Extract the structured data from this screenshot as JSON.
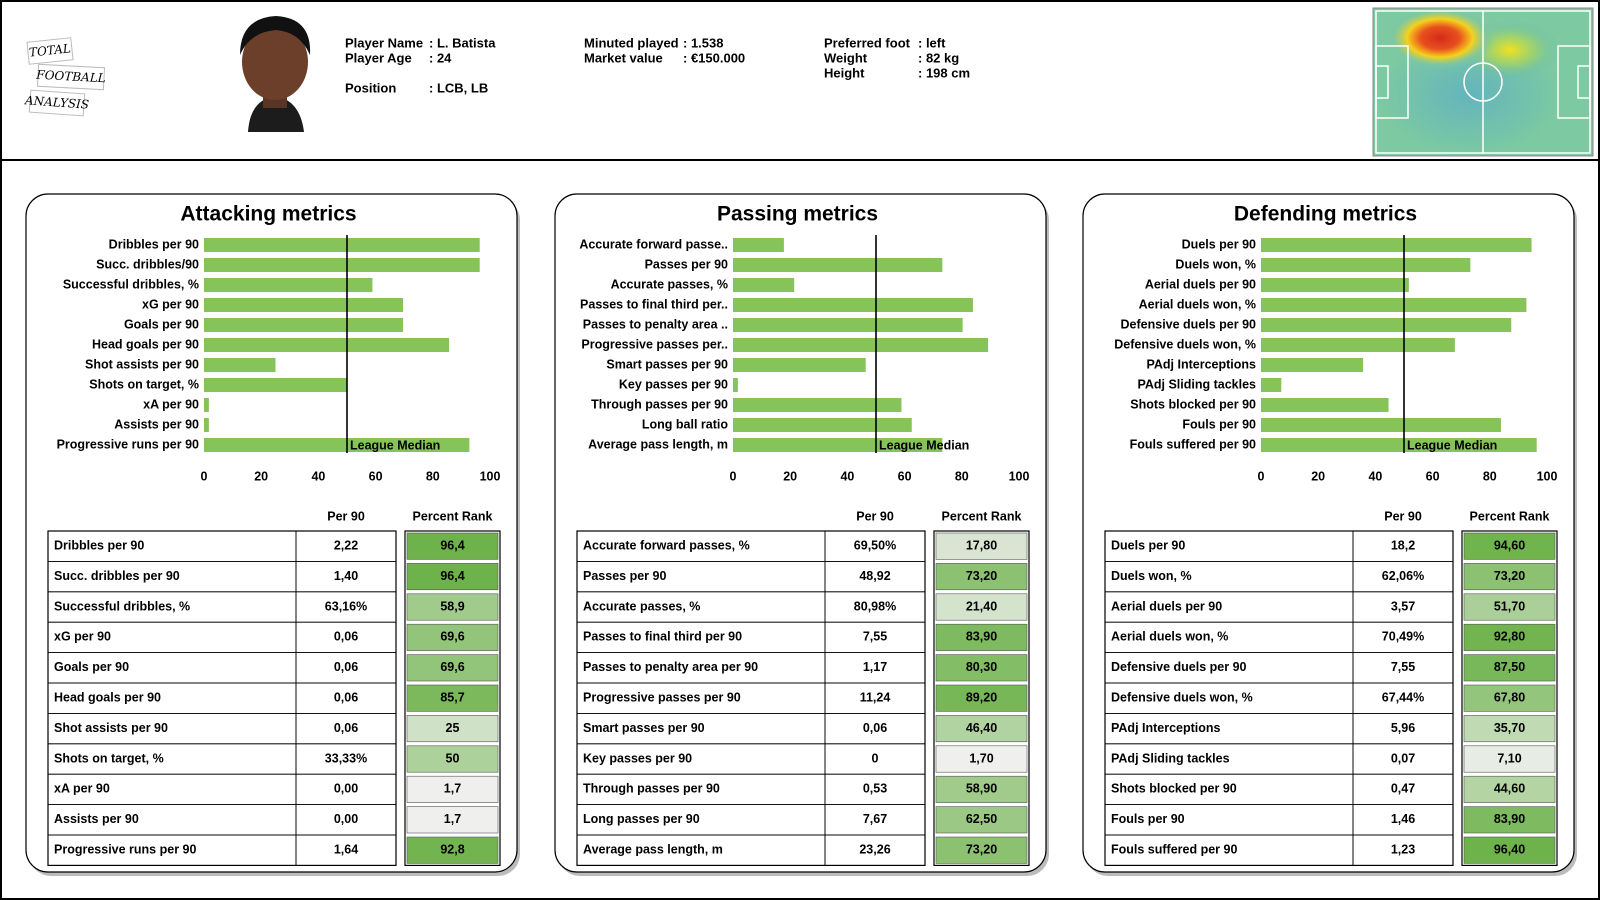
{
  "header": {
    "logo": [
      "TOTAL",
      "FOOTBALL",
      "ANALYSIS"
    ],
    "fields": [
      {
        "label": "Player Name",
        "value": ": L. Batista"
      },
      {
        "label": "Player Age",
        "value": ": 24"
      },
      {
        "label": "Position",
        "value": ": LCB, LB"
      },
      {
        "label": "Minuted played",
        "value": ": 1.538"
      },
      {
        "label": "Market value",
        "value": ": €150.000"
      },
      {
        "label": "Preferred foot",
        "value": ": left"
      },
      {
        "label": "Weight",
        "value": ": 82 kg"
      },
      {
        "label": "Height",
        "value": ": 198 cm"
      }
    ]
  },
  "chart_data": [
    {
      "type": "bar",
      "title": "Attacking metrics",
      "color": "#86c45a",
      "categories": [
        "Dribbles per 90",
        "Succ. dribbles/90",
        "Successful dribbles, %",
        "xG per 90",
        "Goals per 90",
        "Head goals per 90",
        "Shot assists per 90",
        "Shots on target, %",
        "xA per 90",
        "Assists per 90",
        "Progressive runs per 90"
      ],
      "values": [
        96.4,
        96.4,
        58.9,
        69.6,
        69.6,
        85.7,
        25,
        50,
        1.7,
        1.7,
        92.8
      ],
      "xlim": [
        0,
        100
      ],
      "xticks": [
        0,
        20,
        40,
        60,
        80,
        100
      ],
      "median": 50,
      "annotation": "League Median"
    },
    {
      "type": "bar",
      "title": "Passing metrics",
      "color": "#86c45a",
      "categories": [
        "Accurate forward passe..",
        "Passes per 90",
        "Accurate passes, %",
        "Passes to final third per..",
        "Passes to penalty area ..",
        "Progressive passes per..",
        "Smart passes per 90",
        "Key passes per 90",
        "Through passes per 90",
        "Long ball ratio",
        "Average pass length, m"
      ],
      "values": [
        17.8,
        73.2,
        21.4,
        83.9,
        80.3,
        89.2,
        46.4,
        1.7,
        58.9,
        62.5,
        73.2
      ],
      "xlim": [
        0,
        100
      ],
      "xticks": [
        0,
        20,
        40,
        60,
        80,
        100
      ],
      "median": 50,
      "annotation": "League Median"
    },
    {
      "type": "bar",
      "title": "Defending metrics",
      "color": "#86c45a",
      "categories": [
        "Duels per 90",
        "Duels won, %",
        "Aerial duels per 90",
        "Aerial duels won, %",
        "Defensive duels per 90",
        "Defensive duels won, %",
        "PAdj Interceptions",
        "PAdj Sliding tackles",
        "Shots blocked per 90",
        "Fouls per 90",
        "Fouls suffered per 90"
      ],
      "values": [
        94.6,
        73.2,
        51.7,
        92.8,
        87.5,
        67.8,
        35.7,
        7.1,
        44.6,
        83.9,
        96.4
      ],
      "xlim": [
        0,
        100
      ],
      "xticks": [
        0,
        20,
        40,
        60,
        80,
        100
      ],
      "median": 50,
      "annotation": "League Median"
    }
  ],
  "tables": [
    {
      "columns": [
        "Per 90",
        "Percent Rank"
      ],
      "rows": [
        [
          "Dribbles per 90",
          "2,22",
          "96,4"
        ],
        [
          "Succ. dribbles per 90",
          "1,40",
          "96,4"
        ],
        [
          "Successful dribbles, %",
          "63,16%",
          "58,9"
        ],
        [
          "xG per 90",
          "0,06",
          "69,6"
        ],
        [
          "Goals per 90",
          "0,06",
          "69,6"
        ],
        [
          "Head goals per 90",
          "0,06",
          "85,7"
        ],
        [
          "Shot assists per 90",
          "0,06",
          "25"
        ],
        [
          "Shots on target, %",
          "33,33%",
          "50"
        ],
        [
          "xA per 90",
          "0,00",
          "1,7"
        ],
        [
          "Assists per 90",
          "0,00",
          "1,7"
        ],
        [
          "Progressive runs per 90",
          "1,64",
          "92,8"
        ]
      ]
    },
    {
      "columns": [
        "Per 90",
        "Percent Rank"
      ],
      "rows": [
        [
          "Accurate forward passes, %",
          "69,50%",
          "17,80"
        ],
        [
          "Passes per 90",
          "48,92",
          "73,20"
        ],
        [
          "Accurate passes, %",
          "80,98%",
          "21,40"
        ],
        [
          "Passes to final third per 90",
          "7,55",
          "83,90"
        ],
        [
          "Passes to penalty area per 90",
          "1,17",
          "80,30"
        ],
        [
          "Progressive passes per 90",
          "11,24",
          "89,20"
        ],
        [
          "Smart passes per 90",
          "0,06",
          "46,40"
        ],
        [
          "Key passes per 90",
          "0",
          "1,70"
        ],
        [
          "Through passes per 90",
          "0,53",
          "58,90"
        ],
        [
          "Long passes per 90",
          "7,67",
          "62,50"
        ],
        [
          "Average pass length, m",
          "23,26",
          "73,20"
        ]
      ]
    },
    {
      "columns": [
        "Per 90",
        "Percent Rank"
      ],
      "rows": [
        [
          "Duels per 90",
          "18,2",
          "94,60"
        ],
        [
          "Duels won, %",
          "62,06%",
          "73,20"
        ],
        [
          "Aerial duels per 90",
          "3,57",
          "51,70"
        ],
        [
          "Aerial duels won, %",
          "70,49%",
          "92,80"
        ],
        [
          "Defensive duels per 90",
          "7,55",
          "87,50"
        ],
        [
          "Defensive duels won, %",
          "67,44%",
          "67,80"
        ],
        [
          "PAdj Interceptions",
          "5,96",
          "35,70"
        ],
        [
          "PAdj Sliding tackles",
          "0,07",
          "7,10"
        ],
        [
          "Shots blocked per 90",
          "0,47",
          "44,60"
        ],
        [
          "Fouls per 90",
          "1,46",
          "83,90"
        ],
        [
          "Fouls suffered per 90",
          "1,23",
          "96,40"
        ]
      ]
    }
  ]
}
